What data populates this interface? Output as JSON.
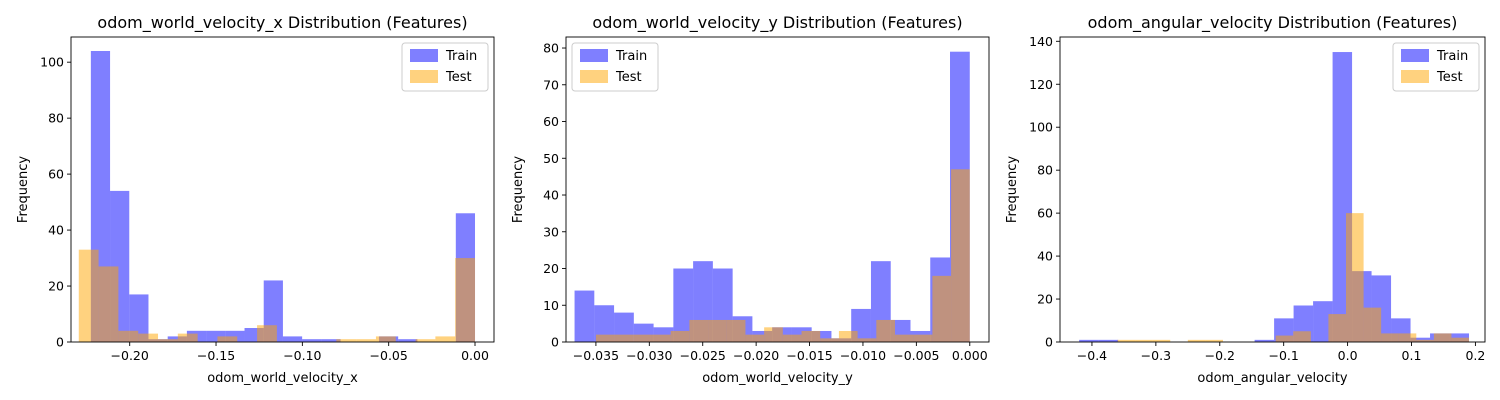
{
  "chart_data": [
    {
      "type": "histogram",
      "title": "odom_world_velocity_x Distribution (Features)",
      "xlabel": "odom_world_velocity_x",
      "ylabel": "Frequency",
      "xlim": [
        -0.234,
        0.011
      ],
      "ylim": [
        0,
        109
      ],
      "xticks": [
        -0.2,
        -0.15,
        -0.1,
        -0.05,
        0.0
      ],
      "xtick_labels": [
        "−0.20",
        "−0.15",
        "−0.10",
        "−0.05",
        "0.00"
      ],
      "yticks": [
        0,
        20,
        40,
        60,
        80,
        100
      ],
      "ytick_labels": [
        "0",
        "20",
        "40",
        "60",
        "80",
        "100"
      ],
      "legend_position": "top-right",
      "series": [
        {
          "name": "Train",
          "color": "#0000ff",
          "opacity": 0.5,
          "bin_start": -0.2225,
          "bin_width": 0.011125,
          "counts": [
            104,
            54,
            17,
            1,
            2,
            4,
            4,
            4,
            5,
            22,
            2,
            1,
            1,
            0,
            0,
            2,
            1,
            0,
            0,
            46
          ]
        },
        {
          "name": "Test",
          "color": "#ffa500",
          "opacity": 0.5,
          "bin_start": -0.2295,
          "bin_width": 0.011475,
          "counts": [
            33,
            27,
            4,
            3,
            1,
            3,
            0,
            2,
            0,
            6,
            0,
            0,
            0,
            1,
            1,
            2,
            0,
            1,
            2,
            30
          ]
        }
      ]
    },
    {
      "type": "histogram",
      "title": "odom_world_velocity_y Distribution (Features)",
      "xlabel": "odom_world_velocity_y",
      "ylabel": "Frequency",
      "xlim": [
        -0.0378,
        0.0018
      ],
      "ylim": [
        0,
        83
      ],
      "xticks": [
        -0.035,
        -0.03,
        -0.025,
        -0.02,
        -0.015,
        -0.01,
        -0.005,
        0.0
      ],
      "xtick_labels": [
        "−0.035",
        "−0.030",
        "−0.025",
        "−0.020",
        "−0.015",
        "−0.010",
        "−0.005",
        "0.000"
      ],
      "yticks": [
        0,
        10,
        20,
        30,
        40,
        50,
        60,
        70,
        80
      ],
      "ytick_labels": [
        "0",
        "10",
        "20",
        "30",
        "40",
        "50",
        "60",
        "70",
        "80"
      ],
      "legend_position": "top-left",
      "series": [
        {
          "name": "Train",
          "color": "#0000ff",
          "opacity": 0.5,
          "bin_start": -0.037,
          "bin_width": 0.00185,
          "counts": [
            14,
            10,
            8,
            5,
            4,
            20,
            22,
            20,
            7,
            3,
            4,
            4,
            3,
            1,
            9,
            22,
            6,
            3,
            23,
            79
          ]
        },
        {
          "name": "Test",
          "color": "#ffa500",
          "opacity": 0.5,
          "bin_start": -0.035,
          "bin_width": 0.00175,
          "counts": [
            2,
            2,
            2,
            2,
            3,
            6,
            6,
            6,
            2,
            4,
            2,
            3,
            1,
            3,
            1,
            6,
            2,
            2,
            18,
            47
          ]
        }
      ]
    },
    {
      "type": "histogram",
      "title": "odom_angular_velocity Distribution (Features)",
      "xlabel": "odom_angular_velocity",
      "ylabel": "Frequency",
      "xlim": [
        -0.45,
        0.215
      ],
      "ylim": [
        0,
        142
      ],
      "xticks": [
        -0.4,
        -0.3,
        -0.2,
        -0.1,
        0.0,
        0.1,
        0.2
      ],
      "xtick_labels": [
        "−0.4",
        "−0.3",
        "−0.2",
        "−0.1",
        "0.0",
        "0.1",
        "0.2"
      ],
      "yticks": [
        0,
        20,
        40,
        60,
        80,
        100,
        120,
        140
      ],
      "ytick_labels": [
        "0",
        "20",
        "40",
        "60",
        "80",
        "100",
        "120",
        "140"
      ],
      "legend_position": "top-right",
      "series": [
        {
          "name": "Train",
          "color": "#0000ff",
          "opacity": 0.5,
          "bin_start": -0.42,
          "bin_width": 0.0305,
          "counts": [
            1,
            1,
            0,
            0,
            0,
            0,
            0,
            0,
            0,
            1,
            11,
            17,
            19,
            135,
            33,
            31,
            11,
            2,
            4,
            4
          ]
        },
        {
          "name": "Test",
          "color": "#ffa500",
          "opacity": 0.5,
          "bin_start": -0.36,
          "bin_width": 0.0275,
          "counts": [
            1,
            1,
            1,
            0,
            1,
            1,
            0,
            0,
            0,
            3,
            5,
            0,
            13,
            60,
            16,
            4,
            4,
            1,
            4,
            2
          ]
        }
      ]
    }
  ]
}
